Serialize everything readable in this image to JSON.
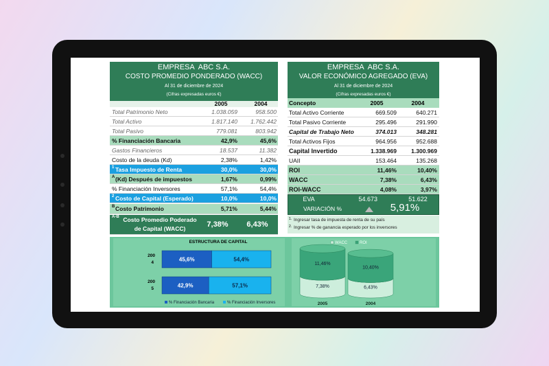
{
  "left_table": {
    "company": "EMPRESA  ABC S.A.",
    "title": "COSTO PROMEDIO PONDERADO (WACC)",
    "date": "Al 31 de diciembre de 2024",
    "note": "(Cifras expresadas euros €)",
    "columns": [
      "2005",
      "2004"
    ],
    "rows": [
      {
        "label": "Total Patrimonio Neto",
        "values": [
          "1.038.059",
          "958.500"
        ]
      },
      {
        "label": "Total Activo",
        "values": [
          "1.817.140",
          "1.762.442"
        ]
      },
      {
        "label": "Total Pasivo",
        "values": [
          "779.081",
          "803.942"
        ]
      },
      {
        "label": "% Financiación Bancaria",
        "values": [
          "42,9%",
          "45,6%"
        ]
      },
      {
        "label": "Gastos Financieros",
        "values": [
          "18.537",
          "11.382"
        ]
      },
      {
        "label": "Costo de la deuda (Kd)",
        "values": [
          "2,38%",
          "1,42%"
        ]
      },
      {
        "marker": "1",
        "label": "Tasa Impuesto de Renta",
        "values": [
          "30,0%",
          "30,0%"
        ]
      },
      {
        "marker": "A",
        "label": "(Kd) Después de impuestos",
        "values": [
          "1,67%",
          "0,99%"
        ]
      },
      {
        "label": "% Financiación Inversores",
        "values": [
          "57,1%",
          "54,4%"
        ]
      },
      {
        "marker": "2",
        "label": "Costo de Capital (Esperado)",
        "values": [
          "10,0%",
          "10,0%"
        ]
      },
      {
        "marker": "B",
        "label": "Costo Patrimonio",
        "values": [
          "5,71%",
          "5,44%"
        ]
      },
      {
        "marker": "A-B",
        "label": "Costo Promedio Poderado de Capital (WACC)",
        "values": [
          "7,38%",
          "6,43%"
        ]
      }
    ]
  },
  "right_table": {
    "company": "EMPRESA  ABC S.A.",
    "title": "VALOR ECONÓMICO AGREGADO (EVA)",
    "date": "Al 31 de diciembre de 2024",
    "note": "(Cifras expresadas euros €)",
    "columns": [
      "Concepto",
      "2005",
      "2004"
    ],
    "rows": [
      {
        "label": "Total Activo Corriente",
        "values": [
          "669.509",
          "640.271"
        ]
      },
      {
        "label": "Total Pasivo Corriente",
        "values": [
          "295.496",
          "291.990"
        ]
      },
      {
        "label": "Capital de Trabajo Neto",
        "values": [
          "374.013",
          "348.281"
        ]
      },
      {
        "label": "Total Activos Fijos",
        "values": [
          "964.956",
          "952.688"
        ]
      },
      {
        "label": "Capital Invertido",
        "values": [
          "1.338.969",
          "1.300.969"
        ]
      },
      {
        "label": "UAII",
        "values": [
          "153.464",
          "135.268"
        ]
      },
      {
        "label": "ROI",
        "values": [
          "11,46%",
          "10,40%"
        ]
      },
      {
        "label": "WACC",
        "values": [
          "7,38%",
          "6,43%"
        ]
      },
      {
        "label": "ROI-WACC",
        "values": [
          "4,08%",
          "3,97%"
        ]
      }
    ],
    "eva": {
      "label": "EVA",
      "values": [
        "54.673",
        "51.622"
      ],
      "variation_label": "VARIACIÓN %",
      "variation": "5,91%"
    },
    "notes": [
      {
        "marker": "1.",
        "text": "Ingresar tasa de impuesta de renta de su país"
      },
      {
        "marker": "2.",
        "text": "Ingresar % de ganancia esperado por los inversores"
      }
    ]
  },
  "charts": [
    {
      "type": "bar",
      "title": "ESTRUCTURA DE CAPITAL",
      "stacked": true,
      "orientation": "horizontal",
      "categories": [
        "2004",
        "2005"
      ],
      "xlim": [
        0,
        100
      ],
      "series": [
        {
          "name": "% Financiación Bancaria",
          "color": "#1c5fc2",
          "values": [
            45.6,
            42.9
          ],
          "value_labels": [
            "45,6%",
            "42,9%"
          ]
        },
        {
          "name": "% Financiación Inversores",
          "color": "#19b2ee",
          "values": [
            54.4,
            57.1
          ],
          "value_labels": [
            "54,4%",
            "57,1%"
          ]
        }
      ]
    },
    {
      "type": "cylinder",
      "stacked": true,
      "categories": [
        "2005",
        "2004"
      ],
      "ylim": [
        0,
        20
      ],
      "series": [
        {
          "name": "WACC",
          "color": "#cdeedc",
          "values": [
            7.38,
            6.43
          ],
          "value_labels": [
            "7,38%",
            "6,43%"
          ]
        },
        {
          "name": "ROI",
          "color": "#3aa57a",
          "values": [
            11.46,
            10.4
          ],
          "value_labels": [
            "11,46%",
            "10,40%"
          ]
        }
      ]
    }
  ]
}
